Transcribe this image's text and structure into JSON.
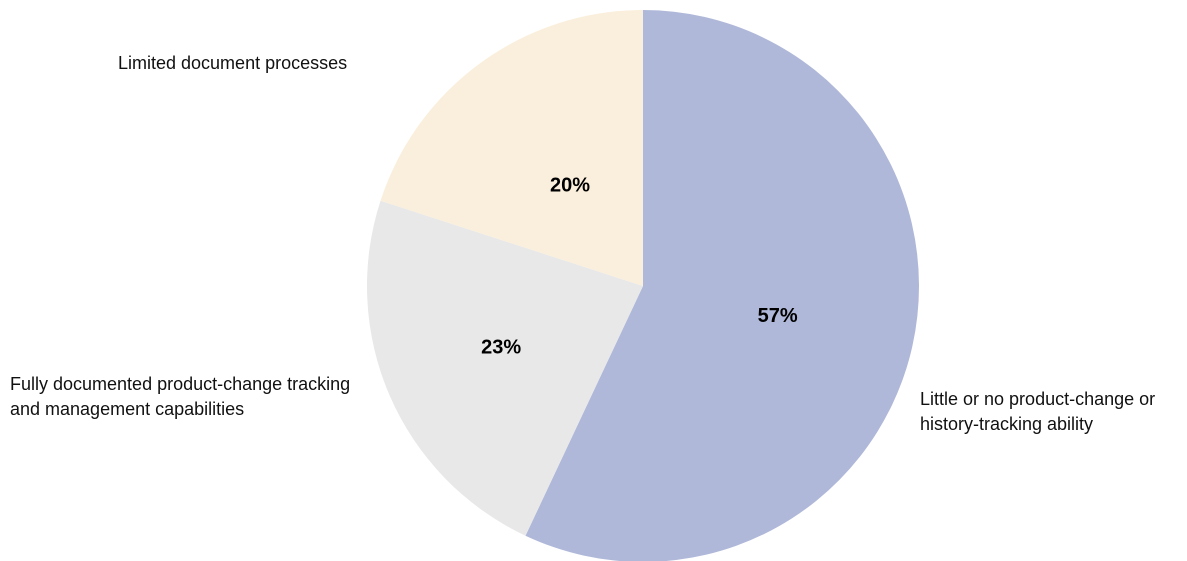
{
  "chart_data": {
    "type": "pie",
    "categories": [
      "Little or no product-change or history-tracking ability",
      "Fully documented product-change tracking and management capabilities",
      "Limited document processes"
    ],
    "values": [
      57,
      23,
      20
    ],
    "value_labels": [
      "57%",
      "23%",
      "20%"
    ],
    "colors": [
      "#afb8d9",
      "#e8e8e8",
      "#faefdc"
    ],
    "start": "12 o'clock",
    "direction": "clockwise",
    "title": "",
    "legend": "none"
  }
}
